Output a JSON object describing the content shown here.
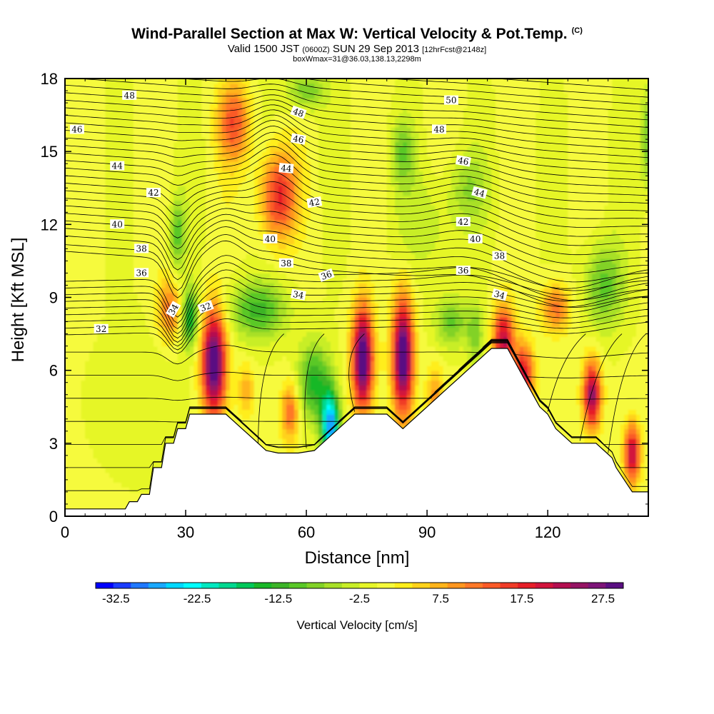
{
  "chart_data": {
    "type": "heatmap",
    "title": "Wind-Parallel Section at Max W: Vertical Velocity & Pot.Temp.",
    "title_unit": "(C)",
    "subtitle_parts": [
      "Valid 1500 JST ",
      "(0600Z)",
      " SUN 29 Sep 2013 ",
      "[12hrFcst@2148z]"
    ],
    "subtitle2": "boxWmax=31@36.03,138.13,2298m",
    "xlabel": "Distance [nm]",
    "ylabel": "Height [Kft MSL]",
    "xlim": [
      0,
      145
    ],
    "ylim": [
      0,
      18
    ],
    "xticks": [
      "0",
      "30",
      "60",
      "90",
      "120"
    ],
    "yticks": [
      "0",
      "3",
      "6",
      "9",
      "12",
      "15",
      "18"
    ],
    "colorbar": {
      "label": "Vertical Velocity [cm/s]",
      "ticks": [
        "-32.5",
        "-22.5",
        "-12.5",
        "-2.5",
        "7.5",
        "17.5",
        "27.5"
      ],
      "range": [
        -35,
        30
      ],
      "colors": [
        "#0000ff",
        "#1a3cff",
        "#1f78ff",
        "#19a8ff",
        "#00d8ff",
        "#00ffff",
        "#00e8c0",
        "#00d890",
        "#00c85a",
        "#19b828",
        "#3cb428",
        "#5ac828",
        "#82d228",
        "#a8e028",
        "#c8ee28",
        "#e6f628",
        "#f6fa3c",
        "#ffee1a",
        "#ffd21a",
        "#ffb41a",
        "#ff961e",
        "#ff7828",
        "#fa5a28",
        "#f03c28",
        "#e61e28",
        "#d2143c",
        "#b40f50",
        "#961464",
        "#7d1478",
        "#5a0f82"
      ]
    },
    "terrain": [
      [
        0,
        0.3
      ],
      [
        5,
        0.3
      ],
      [
        15,
        0.3
      ],
      [
        16,
        0.6
      ],
      [
        18,
        0.6
      ],
      [
        19,
        0.9
      ],
      [
        21,
        0.9
      ],
      [
        22,
        2.0
      ],
      [
        24,
        2.0
      ],
      [
        25,
        3.0
      ],
      [
        27,
        3.0
      ],
      [
        28,
        3.6
      ],
      [
        30,
        3.6
      ],
      [
        31,
        4.2
      ],
      [
        40,
        4.2
      ],
      [
        42,
        3.9
      ],
      [
        44,
        3.6
      ],
      [
        46,
        3.3
      ],
      [
        48,
        3.0
      ],
      [
        50,
        2.7
      ],
      [
        53,
        2.6
      ],
      [
        56,
        2.6
      ],
      [
        58,
        2.6
      ],
      [
        62,
        2.7
      ],
      [
        64,
        3.0
      ],
      [
        66,
        3.3
      ],
      [
        68,
        3.6
      ],
      [
        70,
        3.9
      ],
      [
        72,
        4.2
      ],
      [
        80,
        4.2
      ],
      [
        82,
        3.9
      ],
      [
        84,
        3.6
      ],
      [
        86,
        3.9
      ],
      [
        88,
        4.2
      ],
      [
        90,
        4.5
      ],
      [
        92,
        4.8
      ],
      [
        94,
        5.1
      ],
      [
        96,
        5.4
      ],
      [
        98,
        5.7
      ],
      [
        100,
        6.0
      ],
      [
        102,
        6.3
      ],
      [
        104,
        6.6
      ],
      [
        106,
        6.9
      ],
      [
        110,
        6.9
      ],
      [
        112,
        6.3
      ],
      [
        114,
        5.7
      ],
      [
        116,
        5.1
      ],
      [
        118,
        4.5
      ],
      [
        120,
        4.2
      ],
      [
        122,
        3.6
      ],
      [
        124,
        3.3
      ],
      [
        126,
        3.0
      ],
      [
        128,
        3.0
      ],
      [
        130,
        3.0
      ],
      [
        132,
        3.0
      ],
      [
        134,
        2.7
      ],
      [
        136,
        2.4
      ],
      [
        137,
        2.0
      ],
      [
        139,
        1.5
      ],
      [
        141,
        1.0
      ],
      [
        143,
        1.0
      ],
      [
        145,
        1.0
      ]
    ],
    "w_features": [
      {
        "x": 37,
        "y": 6.3,
        "w": 32,
        "sx": 3.0,
        "sy": 2.2
      },
      {
        "x": 74,
        "y": 6.5,
        "w": 32,
        "sx": 2.6,
        "sy": 2.1
      },
      {
        "x": 84,
        "y": 6.6,
        "w": 32,
        "sx": 2.6,
        "sy": 2.4
      },
      {
        "x": 53,
        "y": 13.2,
        "w": 18,
        "sx": 4.5,
        "sy": 1.8
      },
      {
        "x": 42,
        "y": 16.2,
        "w": 14,
        "sx": 4.0,
        "sy": 1.6
      },
      {
        "x": 109,
        "y": 7.2,
        "w": 22,
        "sx": 2.6,
        "sy": 1.5
      },
      {
        "x": 114,
        "y": 5.8,
        "w": 20,
        "sx": 2.5,
        "sy": 1.3
      },
      {
        "x": 131,
        "y": 5.0,
        "w": 25,
        "sx": 2.2,
        "sy": 1.4
      },
      {
        "x": 141,
        "y": 2.6,
        "w": 22,
        "sx": 2.0,
        "sy": 1.2
      },
      {
        "x": 26,
        "y": 8.5,
        "w": 12,
        "sx": 3.0,
        "sy": 1.3
      },
      {
        "x": 122,
        "y": 8.6,
        "w": 12,
        "sx": 3.5,
        "sy": 1.0
      },
      {
        "x": 56,
        "y": 4.3,
        "w": 13,
        "sx": 2.3,
        "sy": 1.2
      },
      {
        "x": 92,
        "y": 4.8,
        "w": 10,
        "sx": 2.0,
        "sy": 1.3
      },
      {
        "x": 45,
        "y": 5.2,
        "w": 8,
        "sx": 2.0,
        "sy": 1.0
      },
      {
        "x": 66,
        "y": 3.7,
        "w": -28,
        "sx": 2.2,
        "sy": 1.4
      },
      {
        "x": 62,
        "y": 5.5,
        "w": -14,
        "sx": 4.0,
        "sy": 1.6
      },
      {
        "x": 48,
        "y": 8.5,
        "w": -12,
        "sx": 7.0,
        "sy": 1.2
      },
      {
        "x": 31,
        "y": 8.2,
        "w": -16,
        "sx": 2.0,
        "sy": 1.2
      },
      {
        "x": 28,
        "y": 11.6,
        "w": -10,
        "sx": 2.0,
        "sy": 1.5
      },
      {
        "x": 100,
        "y": 13.5,
        "w": -6,
        "sx": 5.0,
        "sy": 1.5
      },
      {
        "x": 84,
        "y": 15.0,
        "w": -8,
        "sx": 3.0,
        "sy": 1.3
      },
      {
        "x": 134,
        "y": 9.5,
        "w": -10,
        "sx": 5.0,
        "sy": 1.8
      },
      {
        "x": 145,
        "y": 15.5,
        "w": -10,
        "sx": 1.8,
        "sy": 2.0
      },
      {
        "x": 60,
        "y": 17.5,
        "w": -9,
        "sx": 5.0,
        "sy": 0.8
      },
      {
        "x": 96,
        "y": 8.0,
        "w": -10,
        "sx": 4.0,
        "sy": 1.0
      },
      {
        "x": 102,
        "y": 7.5,
        "w": -8,
        "sx": 2.0,
        "sy": 1.3
      },
      {
        "x": 90,
        "y": 12.0,
        "w": -4,
        "sx": 8.0,
        "sy": 2.0
      },
      {
        "x": 20,
        "y": 5.0,
        "w": -2,
        "sx": 12.0,
        "sy": 3.0
      }
    ],
    "theta_levels": [
      31,
      32,
      33,
      34,
      35,
      36,
      37,
      38,
      39,
      40,
      41,
      42,
      43,
      44,
      45,
      46,
      47,
      48,
      49,
      50
    ],
    "theta_labels": [
      {
        "t": "48",
        "x": 16,
        "y": 17.3,
        "r": 0
      },
      {
        "t": "46",
        "x": 3,
        "y": 15.9,
        "r": 0
      },
      {
        "t": "44",
        "x": 13,
        "y": 14.4,
        "r": 0
      },
      {
        "t": "42",
        "x": 22,
        "y": 13.3,
        "r": 0
      },
      {
        "t": "40",
        "x": 13,
        "y": 12.0,
        "r": 0
      },
      {
        "t": "38",
        "x": 19,
        "y": 11.0,
        "r": 0
      },
      {
        "t": "36",
        "x": 19,
        "y": 10.0,
        "r": 0
      },
      {
        "t": "34",
        "x": 27,
        "y": 8.5,
        "r": -60
      },
      {
        "t": "32",
        "x": 35,
        "y": 8.6,
        "r": -20
      },
      {
        "t": "32",
        "x": 9,
        "y": 7.7,
        "r": 0
      },
      {
        "t": "48",
        "x": 58,
        "y": 16.6,
        "r": 20
      },
      {
        "t": "46",
        "x": 58,
        "y": 15.5,
        "r": 10
      },
      {
        "t": "44",
        "x": 55,
        "y": 14.3,
        "r": 5
      },
      {
        "t": "42",
        "x": 62,
        "y": 12.9,
        "r": -10
      },
      {
        "t": "40",
        "x": 51,
        "y": 11.4,
        "r": 0
      },
      {
        "t": "38",
        "x": 55,
        "y": 10.4,
        "r": 0
      },
      {
        "t": "36",
        "x": 65,
        "y": 9.9,
        "r": -20
      },
      {
        "t": "34",
        "x": 58,
        "y": 9.1,
        "r": 10
      },
      {
        "t": "50",
        "x": 96,
        "y": 17.1,
        "r": 0
      },
      {
        "t": "48",
        "x": 93,
        "y": 15.9,
        "r": 0
      },
      {
        "t": "46",
        "x": 99,
        "y": 14.6,
        "r": 10
      },
      {
        "t": "44",
        "x": 103,
        "y": 13.3,
        "r": 15
      },
      {
        "t": "42",
        "x": 99,
        "y": 12.1,
        "r": 0
      },
      {
        "t": "40",
        "x": 102,
        "y": 11.4,
        "r": 0
      },
      {
        "t": "38",
        "x": 108,
        "y": 10.7,
        "r": 0
      },
      {
        "t": "36",
        "x": 99,
        "y": 10.1,
        "r": 0
      },
      {
        "t": "34",
        "x": 108,
        "y": 9.1,
        "r": 15
      }
    ]
  }
}
